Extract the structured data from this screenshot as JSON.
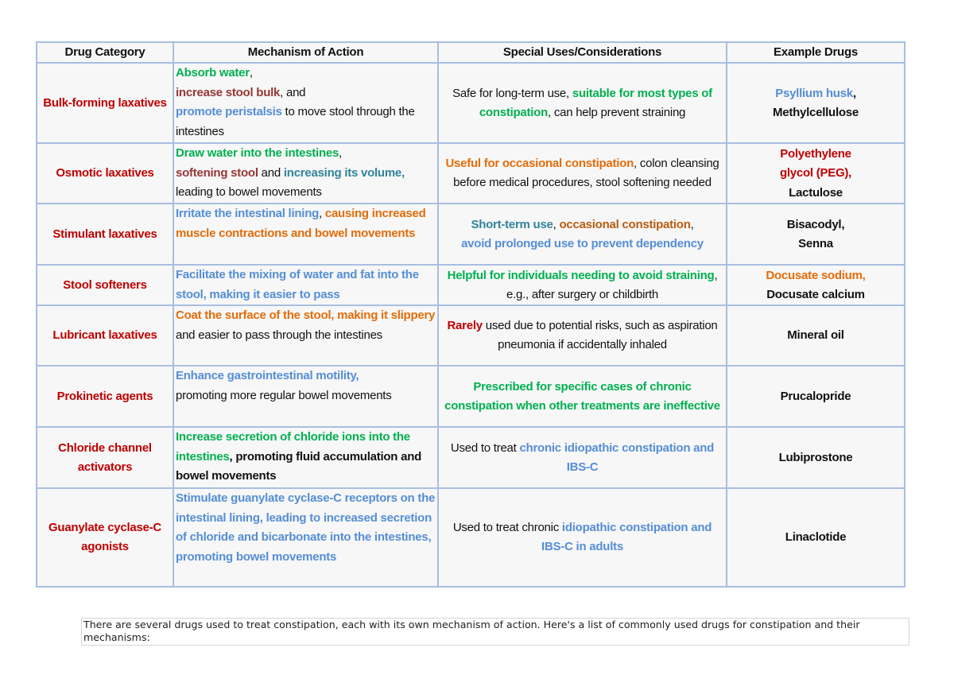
{
  "colors": {
    "red": "#c00000",
    "brown": "#953735",
    "green": "#00b050",
    "blue": "#558ed5",
    "teal": "#31849b",
    "orange": "#e36c09",
    "dorange": "#b85c10",
    "black": "#111111"
  },
  "table": {
    "headers": [
      "Drug Category",
      "Mechanism of Action",
      "Special Uses/Considerations",
      "Example Drugs"
    ],
    "rows": [
      {
        "category": "Bulk-forming laxatives",
        "mechanism": [
          {
            "t": "Absorb water",
            "c": "green",
            "b": 1
          },
          {
            "t": ",\n"
          },
          {
            "t": "increase stool bulk",
            "c": "brown",
            "b": 1
          },
          {
            "t": ", and\n"
          },
          {
            "t": "promote peristalsis",
            "c": "blue",
            "b": 1
          },
          {
            "t": " to move stool through the intestines"
          }
        ],
        "uses": [
          {
            "t": "Safe for long-term use, "
          },
          {
            "t": "suitable for most types of constipation",
            "c": "green",
            "b": 1
          },
          {
            "t": ", can help prevent straining"
          }
        ],
        "examples": [
          {
            "t": "Psyllium husk",
            "c": "blue",
            "b": 1
          },
          {
            "t": ",\nMethylcellulose",
            "b": 1
          }
        ]
      },
      {
        "category": "Osmotic laxatives",
        "mechanism": [
          {
            "t": "Draw water into the intestines",
            "c": "green",
            "b": 1
          },
          {
            "t": ",\n"
          },
          {
            "t": "softening stool",
            "c": "brown",
            "b": 1
          },
          {
            "t": " and "
          },
          {
            "t": "increasing its volume,",
            "c": "teal",
            "b": 1
          },
          {
            "t": " leading to bowel movements"
          }
        ],
        "uses": [
          {
            "t": "Useful for occasional constipation",
            "c": "orange",
            "b": 1
          },
          {
            "t": ", colon cleansing before medical procedures, stool softening needed"
          }
        ],
        "examples": [
          {
            "t": "Polyethylene\nglycol (PEG),",
            "c": "red",
            "b": 1
          },
          {
            "t": "\nLactulose",
            "b": 1
          }
        ]
      },
      {
        "category": "Stimulant laxatives",
        "mechanism": [
          {
            "t": "Irritate the intestinal lining",
            "c": "blue",
            "b": 1
          },
          {
            "t": ", "
          },
          {
            "t": "causing increased muscle contractions and bowel movements",
            "c": "orange",
            "b": 1
          }
        ],
        "uses": [
          {
            "t": "Short-term use",
            "c": "teal",
            "b": 1
          },
          {
            "t": ", "
          },
          {
            "t": "occasional constipation",
            "c": "dorange",
            "b": 1
          },
          {
            "t": ",\n"
          },
          {
            "t": "avoid prolonged use to prevent dependency",
            "c": "blue",
            "b": 1
          }
        ],
        "examples": [
          {
            "t": "Bisacodyl,\nSenna",
            "b": 1
          }
        ]
      },
      {
        "category": "Stool softeners",
        "mechanism": [
          {
            "t": "Facilitate the mixing of water and fat into the stool, making it easier to pass",
            "c": "blue",
            "b": 1
          }
        ],
        "uses": [
          {
            "t": "Helpful for individuals needing to avoid straining",
            "c": "green",
            "b": 1
          },
          {
            "t": ", e.g., after surgery or childbirth"
          }
        ],
        "examples": [
          {
            "t": "Docusate sodium,",
            "c": "orange",
            "b": 1
          },
          {
            "t": "\nDocusate calcium",
            "b": 1
          }
        ]
      },
      {
        "category": "Lubricant laxatives",
        "mechanism": [
          {
            "t": "Coat the surface of the stool, making it slippery",
            "c": "orange",
            "b": 1
          },
          {
            "t": " and easier to pass through the intestines"
          }
        ],
        "uses": [
          {
            "t": "Rarely",
            "c": "red",
            "b": 1
          },
          {
            "t": " used due to potential risks, such as aspiration pneumonia if accidentally inhaled"
          }
        ],
        "examples": [
          {
            "t": "Mineral oil",
            "b": 1
          }
        ]
      },
      {
        "category": "Prokinetic agents",
        "mechanism": [
          {
            "t": "Enhance gastrointestinal motility,",
            "c": "blue",
            "b": 1
          },
          {
            "t": "\npromoting more regular bowel movements"
          }
        ],
        "uses": [
          {
            "t": "Prescribed for specific cases of chronic constipation when other treatments are ineffective",
            "c": "green",
            "b": 1
          }
        ],
        "examples": [
          {
            "t": "Prucalopride",
            "b": 1
          }
        ]
      },
      {
        "category": "Chloride channel activators",
        "mechanism": [
          {
            "t": "Increase secretion of chloride ions into the intestines",
            "c": "green",
            "b": 1
          },
          {
            "t": ", promoting fluid accumulation and bowel movements",
            "b": 1
          }
        ],
        "uses": [
          {
            "t": "Used to treat "
          },
          {
            "t": "chronic idiopathic constipation and IBS-C",
            "c": "blue",
            "b": 1
          }
        ],
        "examples": [
          {
            "t": "Lubiprostone",
            "b": 1
          }
        ]
      },
      {
        "category": "Guanylate cyclase-C agonists",
        "mechanism": [
          {
            "t": "Stimulate guanylate cyclase-C receptors on the intestinal lining, leading to increased secretion of chloride and bicarbonate into the intestines, promoting bowel movements",
            "c": "blue",
            "b": 1
          }
        ],
        "uses": [
          {
            "t": "Used to treat chronic "
          },
          {
            "t": "idiopathic constipation and IBS-C in adults",
            "c": "blue",
            "b": 1
          }
        ],
        "examples": [
          {
            "t": "Linaclotide",
            "b": 1
          }
        ]
      }
    ]
  },
  "note": "There are several drugs used to treat constipation, each with its own mechanism of action. Here's a list of commonly used drugs for constipation and their mechanisms:"
}
